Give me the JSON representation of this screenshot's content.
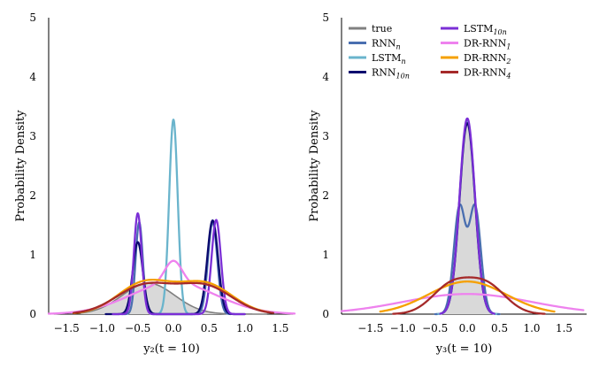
{
  "chart_data": [
    {
      "type": "line",
      "subtype": "kernel-density",
      "xlabel": "y₂(t = 10)",
      "ylabel": "Probability Density",
      "xlim": [
        -1.75,
        1.7
      ],
      "ylim": [
        0,
        5
      ],
      "x_ticks": [
        "−1.5",
        "−1.0",
        "−0.5",
        "0.0",
        "0.5",
        "1.0",
        "1.5"
      ],
      "y_ticks": [
        "0",
        "1",
        "2",
        "3",
        "4",
        "5"
      ],
      "grid": false,
      "series": [
        {
          "name": "true",
          "color": "#808080",
          "filled": true,
          "comps": [
            [
              1,
              -0.35,
              0.37
            ]
          ],
          "scale": 0.52,
          "range": [
            -1.3,
            1.3
          ]
        },
        {
          "name": "RNNn",
          "color": "#4a6fb0",
          "comps": [
            [
              1,
              -0.48,
              0.05
            ],
            [
              1,
              0.55,
              0.065
            ]
          ],
          "scale": 1.55,
          "range": [
            -0.72,
            0.8
          ]
        },
        {
          "name": "LSTMn",
          "color": "#6ab4cc",
          "comps": [
            [
              1,
              0,
              0.06
            ]
          ],
          "scale": 3.28,
          "range": [
            -0.3,
            0.3
          ]
        },
        {
          "name": "RNN10n",
          "color": "#0a0a6e",
          "comps": [
            [
              1,
              -0.5,
              0.07
            ],
            [
              1.3,
              0.55,
              0.075
            ]
          ],
          "scale": 1.58,
          "range": [
            -0.95,
            1.0
          ]
        },
        {
          "name": "LSTM10n",
          "color": "#7b2fd6",
          "comps": [
            [
              1.07,
              -0.5,
              0.055
            ],
            [
              1,
              0.6,
              0.065
            ]
          ],
          "scale": 1.7,
          "range": [
            -0.85,
            1.0
          ]
        },
        {
          "name": "DR-RNN1",
          "color": "#ee82ee",
          "comps": [
            [
              0.7,
              0,
              0.12
            ],
            [
              1,
              0,
              0.6
            ]
          ],
          "scale": 0.9,
          "range": [
            -1.75,
            1.7
          ]
        },
        {
          "name": "DR-RNN2",
          "color": "#f5a000",
          "comps": [
            [
              1,
              -0.4,
              0.38
            ],
            [
              0.95,
              0.45,
              0.38
            ]
          ],
          "scale": 0.58,
          "range": [
            -1.4,
            1.35
          ]
        },
        {
          "name": "DR-RNN4",
          "color": "#a52a2a",
          "comps": [
            [
              1,
              -0.4,
              0.4
            ],
            [
              0.95,
              0.45,
              0.38
            ]
          ],
          "scale": 0.53,
          "range": [
            -1.4,
            1.4
          ]
        }
      ]
    },
    {
      "type": "line",
      "subtype": "kernel-density",
      "xlabel": "y₃(t = 10)",
      "ylabel": "Probability Density",
      "xlim": [
        -1.95,
        1.85
      ],
      "ylim": [
        0,
        5
      ],
      "x_ticks": [
        "−1.5",
        "−1.0",
        "−0.5",
        "0.0",
        "0.5",
        "1.0",
        "1.5"
      ],
      "y_ticks": [
        "0",
        "1",
        "2",
        "3",
        "4",
        "5"
      ],
      "grid": false,
      "legend": {
        "position": "top-left",
        "columns": 2
      },
      "series": [
        {
          "name": "true",
          "color": "#808080",
          "filled": true,
          "comps": [
            [
              1,
              0,
              0.12
            ]
          ],
          "scale": 3.28,
          "range": [
            -0.45,
            0.45
          ]
        },
        {
          "name": "RNNn",
          "color": "#4a6fb0",
          "comps": [
            [
              1,
              -0.12,
              0.09
            ],
            [
              1,
              0.12,
              0.09
            ]
          ],
          "scale": 1.85,
          "range": [
            -0.5,
            0.5
          ]
        },
        {
          "name": "LSTMn",
          "color": "#6ab4cc",
          "comps": [
            [
              1,
              0,
              0.12
            ]
          ],
          "scale": 3.25,
          "range": [
            -0.45,
            0.45
          ]
        },
        {
          "name": "RNN10n",
          "color": "#0a0a6e",
          "comps": [
            [
              1,
              0,
              0.12
            ]
          ],
          "scale": 3.22,
          "range": [
            -0.4,
            0.4
          ]
        },
        {
          "name": "LSTM10n",
          "color": "#7b2fd6",
          "comps": [
            [
              1,
              0,
              0.12
            ]
          ],
          "scale": 3.3,
          "range": [
            -0.42,
            0.42
          ]
        },
        {
          "name": "DR-RNN1",
          "color": "#ee82ee",
          "comps": [
            [
              1,
              0,
              1.0
            ]
          ],
          "scale": 0.34,
          "range": [
            -1.95,
            1.8
          ]
        },
        {
          "name": "DR-RNN2",
          "color": "#f5a000",
          "comps": [
            [
              1,
              0,
              0.6
            ]
          ],
          "scale": 0.55,
          "range": [
            -1.35,
            1.35
          ]
        },
        {
          "name": "DR-RNN4",
          "color": "#a52a2a",
          "comps": [
            [
              1,
              -0.25,
              0.3
            ],
            [
              1,
              0.3,
              0.3
            ]
          ],
          "scale": 0.62,
          "range": [
            -1.15,
            1.2
          ]
        }
      ]
    }
  ],
  "legend_labels": [
    {
      "base": "true",
      "sub": ""
    },
    {
      "base": "RNN",
      "sub": "n"
    },
    {
      "base": "LSTM",
      "sub": "n"
    },
    {
      "base": "RNN",
      "sub": "10n"
    },
    {
      "base": "LSTM",
      "sub": "10n"
    },
    {
      "base": "DR-RNN",
      "sub": "1"
    },
    {
      "base": "DR-RNN",
      "sub": "2"
    },
    {
      "base": "DR-RNN",
      "sub": "4"
    }
  ]
}
